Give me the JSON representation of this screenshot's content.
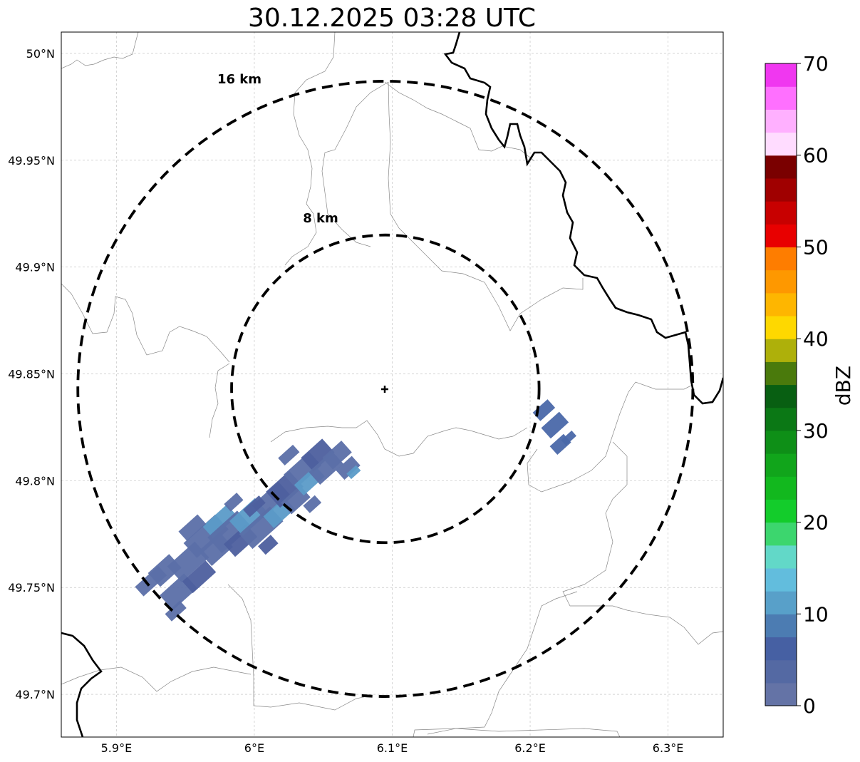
{
  "title": "30.12.2025 03:28 UTC",
  "map": {
    "lon_range": [
      5.86,
      6.34
    ],
    "lat_range": [
      49.68,
      50.01
    ],
    "xticks": [
      {
        "value": 5.9,
        "label": "5.9°E"
      },
      {
        "value": 6.0,
        "label": "6°E"
      },
      {
        "value": 6.1,
        "label": "6.1°E"
      },
      {
        "value": 6.2,
        "label": "6.2°E"
      },
      {
        "value": 6.3,
        "label": "6.3°E"
      }
    ],
    "yticks": [
      {
        "value": 50.0,
        "label": "50°N"
      },
      {
        "value": 49.95,
        "label": "49.95°N"
      },
      {
        "value": 49.9,
        "label": "49.9°N"
      },
      {
        "value": 49.85,
        "label": "49.85°N"
      },
      {
        "value": 49.8,
        "label": "49.8°N"
      },
      {
        "value": 49.75,
        "label": "49.75°N"
      },
      {
        "value": 49.7,
        "label": "49.7°N"
      }
    ],
    "grid": true,
    "radar_site": {
      "lon": 6.095,
      "lat": 49.843
    },
    "range_rings": [
      {
        "label": "8 km",
        "radius_lat": 0.072
      },
      {
        "label": "16 km",
        "radius_lat": 0.144
      }
    ]
  },
  "colorbar": {
    "label": "dBZ",
    "ticks": [
      0,
      10,
      20,
      30,
      40,
      50,
      60,
      70
    ],
    "colors": [
      "#6473a6",
      "#5469a3",
      "#4660a3",
      "#4c7cb2",
      "#58a0c9",
      "#62bddd",
      "#62d8c8",
      "#3cd66e",
      "#13cc2b",
      "#12b81e",
      "#11a51b",
      "#0e8f17",
      "#0b7815",
      "#085f12",
      "#4a7a0c",
      "#aeb00a",
      "#fed800",
      "#feb600",
      "#fe9800",
      "#fe7d00",
      "#e80000",
      "#c80000",
      "#a00000",
      "#7a0000",
      "#ffdcff",
      "#ffb0ff",
      "#ff70ff",
      "#f037f0"
    ]
  },
  "echo_colors": {
    "dark": "#4d5f9e",
    "mid": "#5b6fa8",
    "light": "#5b9bc8",
    "edge": "#4a68a9"
  }
}
